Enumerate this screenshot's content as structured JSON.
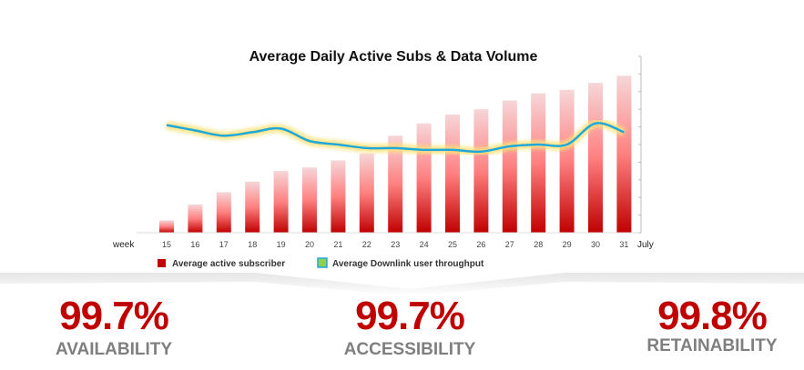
{
  "chart_data": {
    "type": "bar+line",
    "title": "Average Daily Active Subs & Data Volume",
    "xlabel": "week",
    "x_suffix_label": "July",
    "categories": [
      "15",
      "16",
      "17",
      "18",
      "19",
      "20",
      "21",
      "22",
      "23",
      "24",
      "25",
      "26",
      "27",
      "28",
      "29",
      "30",
      "31"
    ],
    "ylim": [
      0,
      10
    ],
    "series": [
      {
        "name": "Average active subscriber",
        "type": "bar",
        "color": "#c00000",
        "values": [
          0.7,
          1.6,
          2.3,
          2.9,
          3.5,
          3.7,
          4.1,
          4.5,
          5.5,
          6.2,
          6.7,
          7.0,
          7.5,
          7.9,
          8.1,
          8.5,
          8.9
        ]
      },
      {
        "name": "Average Downlink user throughput",
        "type": "line",
        "color": "#1fa8d8",
        "values": [
          6.1,
          5.8,
          5.5,
          5.7,
          5.9,
          5.2,
          5.0,
          4.8,
          4.8,
          4.7,
          4.7,
          4.6,
          4.9,
          5.0,
          5.0,
          6.2,
          5.7
        ]
      }
    ],
    "legend": "bottom"
  },
  "kpis": [
    {
      "value": "99.7%",
      "label": "AVAILABILITY"
    },
    {
      "value": "99.7%",
      "label": "ACCESSIBILITY"
    },
    {
      "value": "99.8%",
      "label": "RETAINABILITY"
    }
  ]
}
